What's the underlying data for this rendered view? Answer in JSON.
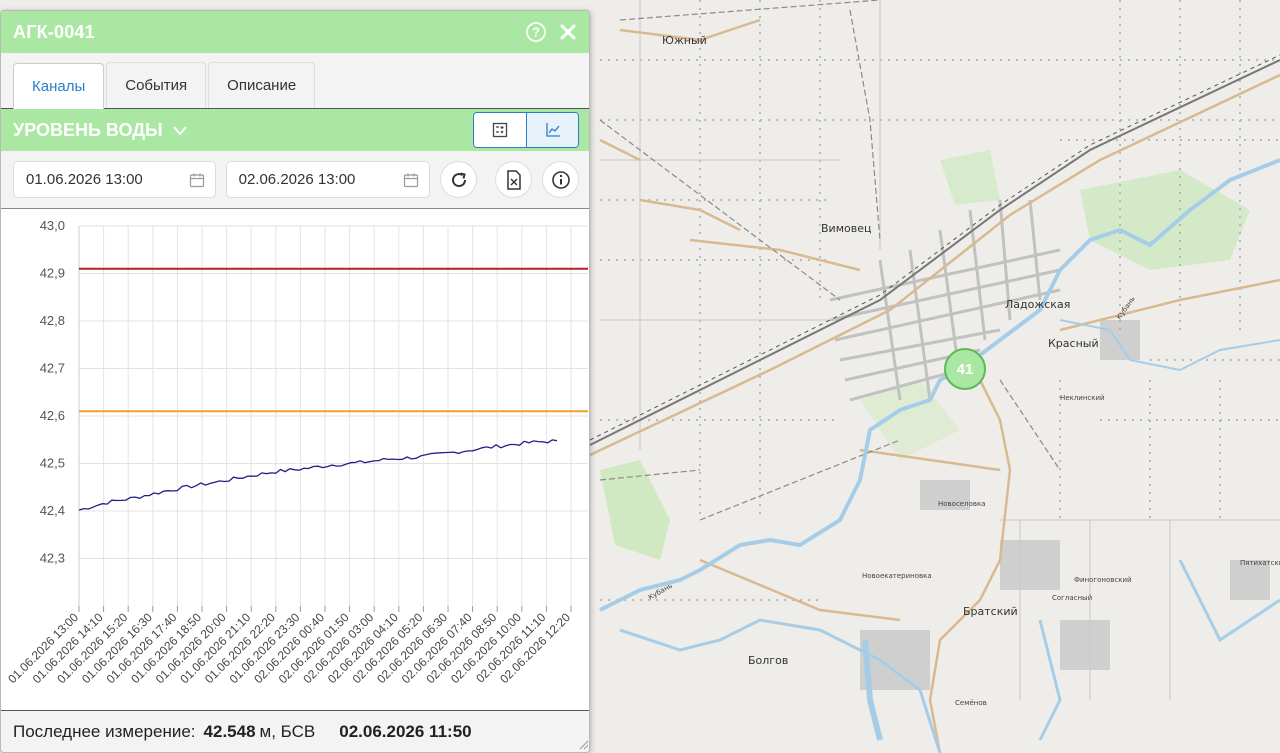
{
  "station": {
    "title": "АГК-0041",
    "tabs": [
      {
        "label": "Каналы",
        "active": true
      },
      {
        "label": "События",
        "active": false
      },
      {
        "label": "Описание",
        "active": false
      }
    ],
    "channel": "УРОВЕНЬ ВОДЫ",
    "date_from": "01.06.2026 13:00",
    "date_to": "02.06.2026 13:00"
  },
  "footer": {
    "label": "Последнее измерение:",
    "value": "42.548",
    "unit": "м, БСВ",
    "datetime": "02.06.2026 11:50"
  },
  "marker": {
    "count": "41"
  },
  "map_labels": {
    "yuzhny": "Южный",
    "vimovets": "Вимовец",
    "ladozhskaya": "Ладожская",
    "krasny": "Красный",
    "bratsky": "Братский",
    "bolgov": "Болгов",
    "kuban": "Кубань",
    "novoselovka": "Новоселовка",
    "novoekaterinovka": "Новоекатериновка",
    "fingogonovsky": "Финогоновский",
    "soglasny": "Согласный",
    "semenov": "Семёнов",
    "pyatikhatsky": "Пятихатский",
    "nevlinsky": "Неклинский"
  },
  "colors": {
    "header_green": "#a9e7a2",
    "accent_blue": "#2a7ec9",
    "series": "#1f1f8a",
    "upper_threshold": "#b22222",
    "lower_threshold": "#f0a030"
  },
  "chart_data": {
    "type": "line",
    "ylim": [
      42.2,
      43.0
    ],
    "yticks": [
      "43,0",
      "42,9",
      "42,8",
      "42,7",
      "42,6",
      "42,5",
      "42,4",
      "42,3"
    ],
    "ytick_values": [
      43.0,
      42.9,
      42.8,
      42.7,
      42.6,
      42.5,
      42.4,
      42.3
    ],
    "x_categories": [
      "01.06.2026 13:00",
      "01.06.2026 14:10",
      "01.06.2026 15:20",
      "01.06.2026 16:30",
      "01.06.2026 17:40",
      "01.06.2026 18:50",
      "01.06.2026 20:00",
      "01.06.2026 21:10",
      "01.06.2026 22:20",
      "01.06.2026 23:30",
      "02.06.2026 00:40",
      "02.06.2026 01:50",
      "02.06.2026 03:00",
      "02.06.2026 04:10",
      "02.06.2026 05:20",
      "02.06.2026 06:30",
      "02.06.2026 07:40",
      "02.06.2026 08:50",
      "02.06.2026 10:00",
      "02.06.2026 11:10",
      "02.06.2026 12:20"
    ],
    "thresholds": [
      {
        "value": 42.91,
        "color": "#b22222"
      },
      {
        "value": 42.61,
        "color": "#f0a030"
      }
    ],
    "series": [
      {
        "color": "#1f1f8a",
        "values": [
          42.402,
          42.418,
          42.428,
          42.441,
          42.452,
          42.462,
          42.473,
          42.483,
          42.489,
          42.497,
          42.502,
          42.509,
          42.513,
          42.521,
          42.529,
          42.537,
          42.544,
          42.548
        ]
      }
    ],
    "grid": true
  }
}
